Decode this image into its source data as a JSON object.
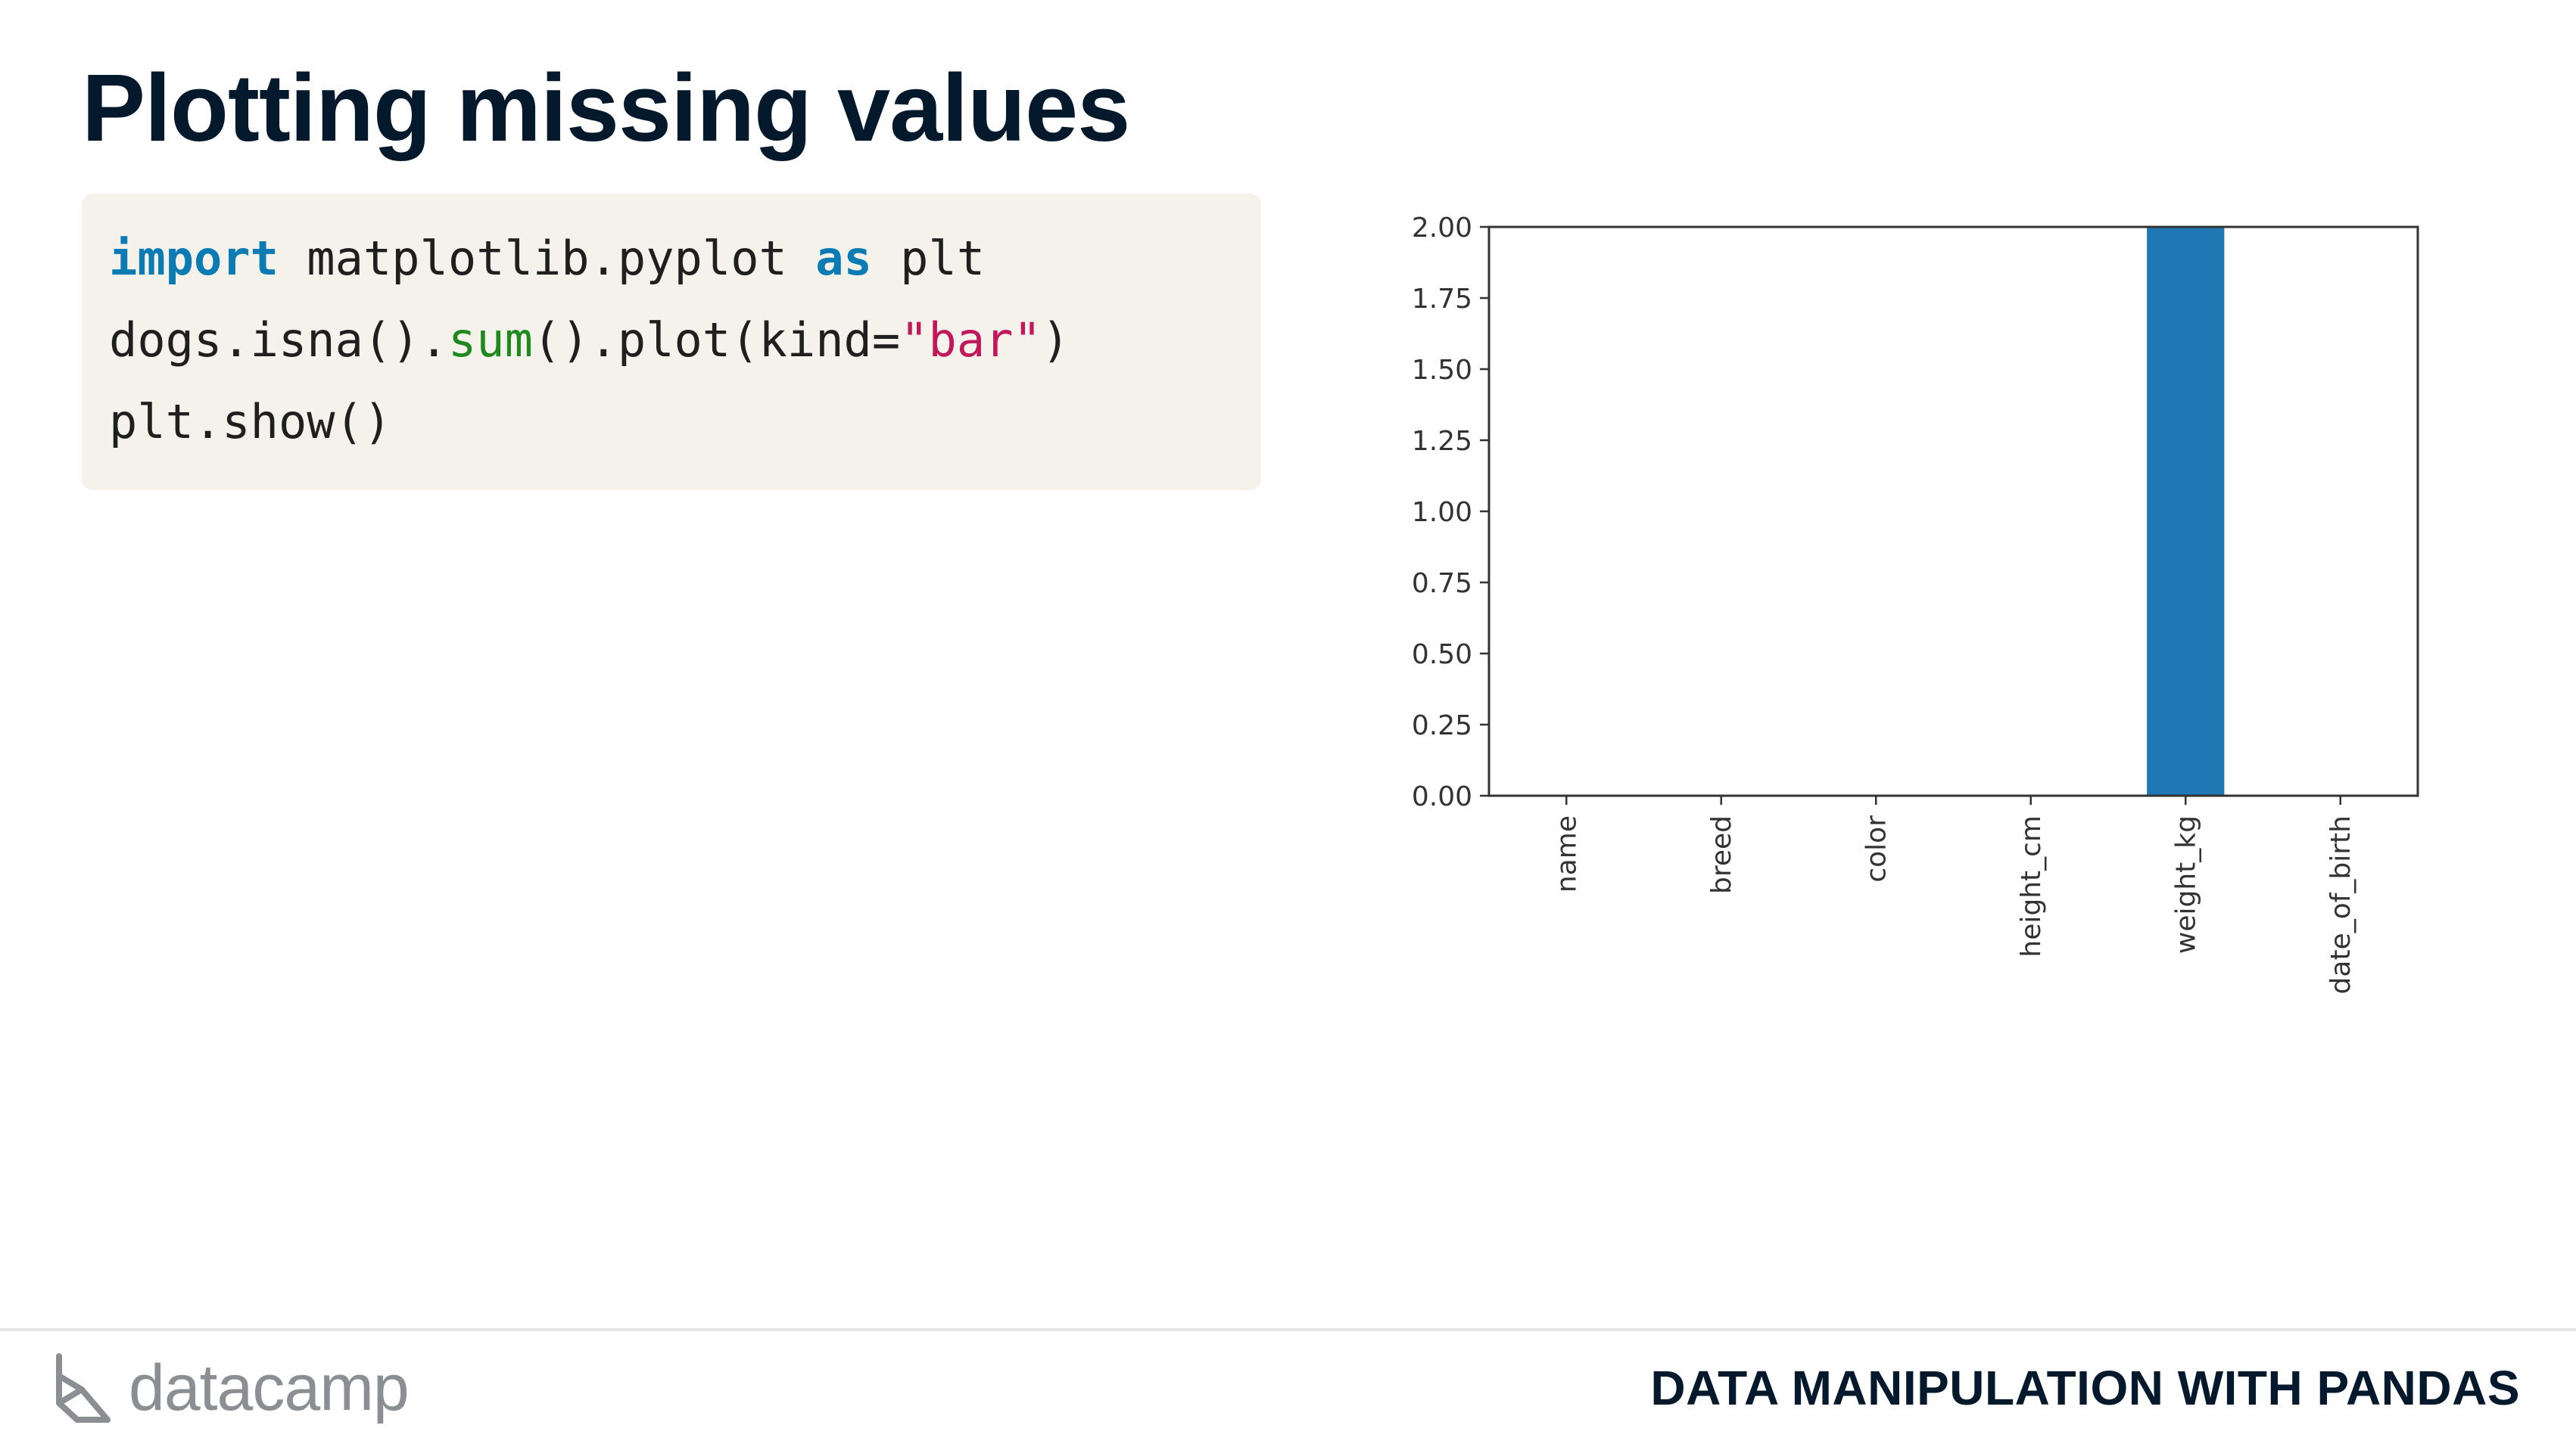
{
  "slide": {
    "title": "Plotting missing values"
  },
  "code": {
    "line1": {
      "kw_import": "import",
      "module": " matplotlib.pyplot ",
      "kw_as": "as",
      "alias": " plt"
    },
    "line2": {
      "prefix": "dogs.isna().",
      "fn_sum": "sum",
      "middle": "().plot(kind=",
      "str_bar": "\"bar\"",
      "suffix": ")"
    },
    "line3": {
      "text": "plt.show()"
    }
  },
  "chart_data": {
    "type": "bar",
    "categories": [
      "name",
      "breed",
      "color",
      "height_cm",
      "weight_kg",
      "date_of_birth"
    ],
    "values": [
      0,
      0,
      0,
      0,
      2,
      0
    ],
    "ylim": [
      0,
      2.0
    ],
    "yticks": [
      "0.00",
      "0.25",
      "0.50",
      "0.75",
      "1.00",
      "1.25",
      "1.50",
      "1.75",
      "2.00"
    ],
    "xlabel": "",
    "ylabel": "",
    "title": "",
    "bar_color": "#1f77b4",
    "grid": false
  },
  "footer": {
    "brand": "datacamp",
    "course": "DATA MANIPULATION WITH PANDAS"
  },
  "colors": {
    "title": "#05192d",
    "code_bg": "#f5f2eb",
    "keyword": "#0b7cb3",
    "function": "#1e8a1e",
    "string": "#c2185b",
    "logo": "#8b8f94"
  }
}
